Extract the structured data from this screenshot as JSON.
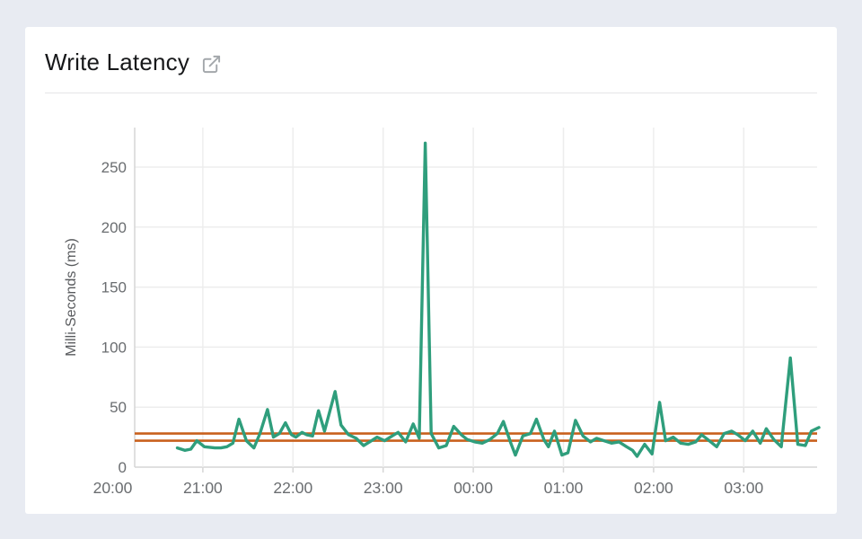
{
  "page": {
    "background_color": "#e8ebf2",
    "card_background_color": "#ffffff"
  },
  "header": {
    "title": "Write Latency",
    "external_link_icon": "external-link-icon"
  },
  "chart_data": {
    "type": "line",
    "title": "Write Latency",
    "xlabel": "",
    "ylabel": "Milli-Seconds (ms)",
    "grid": true,
    "legend": "none",
    "ylim": [
      0,
      280
    ],
    "y_ticks": [
      0,
      50,
      100,
      150,
      200,
      250
    ],
    "x_ticks": [
      {
        "label": "20:00",
        "minutes": 0
      },
      {
        "label": "21:00",
        "minutes": 60
      },
      {
        "label": "22:00",
        "minutes": 120
      },
      {
        "label": "23:00",
        "minutes": 180
      },
      {
        "label": "00:00",
        "minutes": 240
      },
      {
        "label": "01:00",
        "minutes": 300
      },
      {
        "label": "02:00",
        "minutes": 360
      },
      {
        "label": "03:00",
        "minutes": 420
      }
    ],
    "x_range_minutes": [
      0,
      472
    ],
    "colors": {
      "series": "#2f9e7c",
      "threshold": "#c9611d",
      "gridline": "#ededed",
      "axis_line": "#d6d6d6",
      "tick_label": "#6a6d70",
      "axis_title": "#595b5e"
    },
    "threshold_lines": [
      {
        "name": "upper-threshold",
        "value": 28,
        "color": "#c9611d"
      },
      {
        "name": "lower-threshold",
        "value": 22,
        "color": "#c9611d"
      }
    ],
    "series": [
      {
        "name": "write-latency-ms",
        "color": "#2f9e7c",
        "points_t_minutes_value_ms": [
          [
            43,
            16
          ],
          [
            48,
            14
          ],
          [
            52,
            15
          ],
          [
            56,
            22
          ],
          [
            61,
            17
          ],
          [
            68,
            16
          ],
          [
            72,
            16
          ],
          [
            76,
            17
          ],
          [
            80,
            20
          ],
          [
            84,
            40
          ],
          [
            89,
            22
          ],
          [
            94,
            16
          ],
          [
            98,
            28
          ],
          [
            103,
            48
          ],
          [
            107,
            25
          ],
          [
            111,
            28
          ],
          [
            115,
            37
          ],
          [
            119,
            27
          ],
          [
            122,
            25
          ],
          [
            126,
            29
          ],
          [
            129,
            27
          ],
          [
            133,
            26
          ],
          [
            137,
            47
          ],
          [
            141,
            30
          ],
          [
            148,
            63
          ],
          [
            152,
            35
          ],
          [
            157,
            27
          ],
          [
            162,
            24
          ],
          [
            167,
            18
          ],
          [
            171,
            21
          ],
          [
            176,
            25
          ],
          [
            181,
            22
          ],
          [
            186,
            26
          ],
          [
            190,
            29
          ],
          [
            195,
            21
          ],
          [
            200,
            36
          ],
          [
            204,
            24
          ],
          [
            208,
            270
          ],
          [
            212,
            28
          ],
          [
            217,
            16
          ],
          [
            222,
            18
          ],
          [
            227,
            34
          ],
          [
            232,
            27
          ],
          [
            236,
            23
          ],
          [
            241,
            21
          ],
          [
            246,
            20
          ],
          [
            251,
            23
          ],
          [
            256,
            28
          ],
          [
            260,
            38
          ],
          [
            265,
            20
          ],
          [
            268,
            10
          ],
          [
            273,
            26
          ],
          [
            278,
            28
          ],
          [
            282,
            40
          ],
          [
            287,
            23
          ],
          [
            290,
            17
          ],
          [
            294,
            30
          ],
          [
            299,
            10
          ],
          [
            303,
            12
          ],
          [
            308,
            39
          ],
          [
            313,
            26
          ],
          [
            318,
            21
          ],
          [
            322,
            24
          ],
          [
            327,
            22
          ],
          [
            332,
            20
          ],
          [
            337,
            21
          ],
          [
            342,
            17
          ],
          [
            346,
            14
          ],
          [
            349,
            9
          ],
          [
            354,
            19
          ],
          [
            359,
            11
          ],
          [
            364,
            54
          ],
          [
            368,
            22
          ],
          [
            373,
            25
          ],
          [
            378,
            20
          ],
          [
            383,
            19
          ],
          [
            388,
            21
          ],
          [
            392,
            27
          ],
          [
            397,
            22
          ],
          [
            402,
            17
          ],
          [
            407,
            28
          ],
          [
            412,
            30
          ],
          [
            416,
            27
          ],
          [
            421,
            22
          ],
          [
            426,
            30
          ],
          [
            431,
            20
          ],
          [
            435,
            32
          ],
          [
            440,
            23
          ],
          [
            445,
            17
          ],
          [
            451,
            91
          ],
          [
            456,
            19
          ],
          [
            461,
            18
          ],
          [
            465,
            30
          ],
          [
            470,
            33
          ]
        ]
      }
    ]
  }
}
